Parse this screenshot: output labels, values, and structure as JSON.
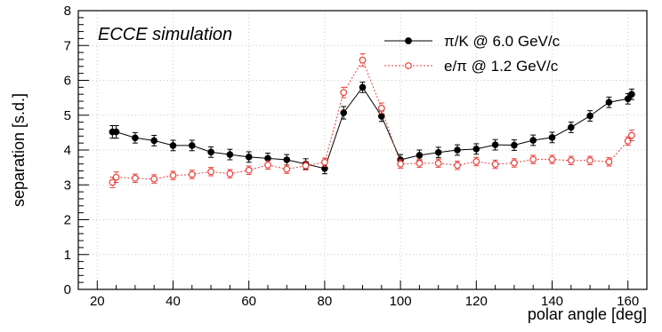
{
  "chart_data": {
    "type": "scatter",
    "annotation": "ECCE simulation",
    "xlabel": "polar angle [deg]",
    "ylabel": "separation [s.d.]",
    "xlim": [
      15,
      165
    ],
    "ylim": [
      0,
      8
    ],
    "x_ticks": [
      20,
      40,
      60,
      80,
      100,
      120,
      140,
      160
    ],
    "y_ticks": [
      0,
      1,
      2,
      3,
      4,
      5,
      6,
      7,
      8
    ],
    "grid": true,
    "legend_position": "top-right",
    "series": [
      {
        "name": "π/K @ 6.0 GeV/c",
        "color": "#000000",
        "marker": "filled-circle",
        "line": "solid",
        "x": [
          24,
          25,
          30,
          35,
          40,
          45,
          50,
          55,
          60,
          65,
          70,
          75,
          80,
          85,
          90,
          95,
          100,
          105,
          110,
          115,
          120,
          125,
          130,
          135,
          140,
          145,
          150,
          155,
          160,
          161
        ],
        "y": [
          4.52,
          4.52,
          4.35,
          4.27,
          4.13,
          4.13,
          3.94,
          3.87,
          3.8,
          3.76,
          3.72,
          3.6,
          3.47,
          5.07,
          5.8,
          4.97,
          3.72,
          3.85,
          3.93,
          4.0,
          4.03,
          4.15,
          4.14,
          4.28,
          4.36,
          4.65,
          4.98,
          5.37,
          5.47,
          5.6
        ],
        "err": [
          0.18,
          0.18,
          0.15,
          0.15,
          0.15,
          0.15,
          0.15,
          0.15,
          0.15,
          0.15,
          0.15,
          0.15,
          0.15,
          0.18,
          0.15,
          0.15,
          0.15,
          0.15,
          0.15,
          0.15,
          0.15,
          0.15,
          0.15,
          0.15,
          0.15,
          0.15,
          0.15,
          0.15,
          0.15,
          0.15
        ]
      },
      {
        "name": "e/π @ 1.2 GeV/c",
        "color": "#e8403a",
        "marker": "open-circle",
        "line": "dotted",
        "x": [
          24,
          25,
          30,
          35,
          40,
          45,
          50,
          55,
          60,
          65,
          70,
          75,
          80,
          85,
          90,
          95,
          100,
          105,
          110,
          115,
          120,
          125,
          130,
          135,
          140,
          145,
          150,
          155,
          160,
          161
        ],
        "y": [
          3.07,
          3.22,
          3.19,
          3.17,
          3.27,
          3.3,
          3.38,
          3.32,
          3.42,
          3.57,
          3.45,
          3.55,
          3.65,
          5.65,
          6.58,
          5.2,
          3.6,
          3.62,
          3.62,
          3.56,
          3.67,
          3.59,
          3.63,
          3.73,
          3.73,
          3.7,
          3.7,
          3.66,
          4.26,
          4.42
        ],
        "err": [
          0.15,
          0.15,
          0.12,
          0.12,
          0.12,
          0.12,
          0.12,
          0.12,
          0.12,
          0.12,
          0.12,
          0.12,
          0.12,
          0.15,
          0.18,
          0.15,
          0.12,
          0.12,
          0.12,
          0.12,
          0.12,
          0.12,
          0.12,
          0.12,
          0.12,
          0.12,
          0.12,
          0.12,
          0.12,
          0.15
        ]
      }
    ]
  }
}
